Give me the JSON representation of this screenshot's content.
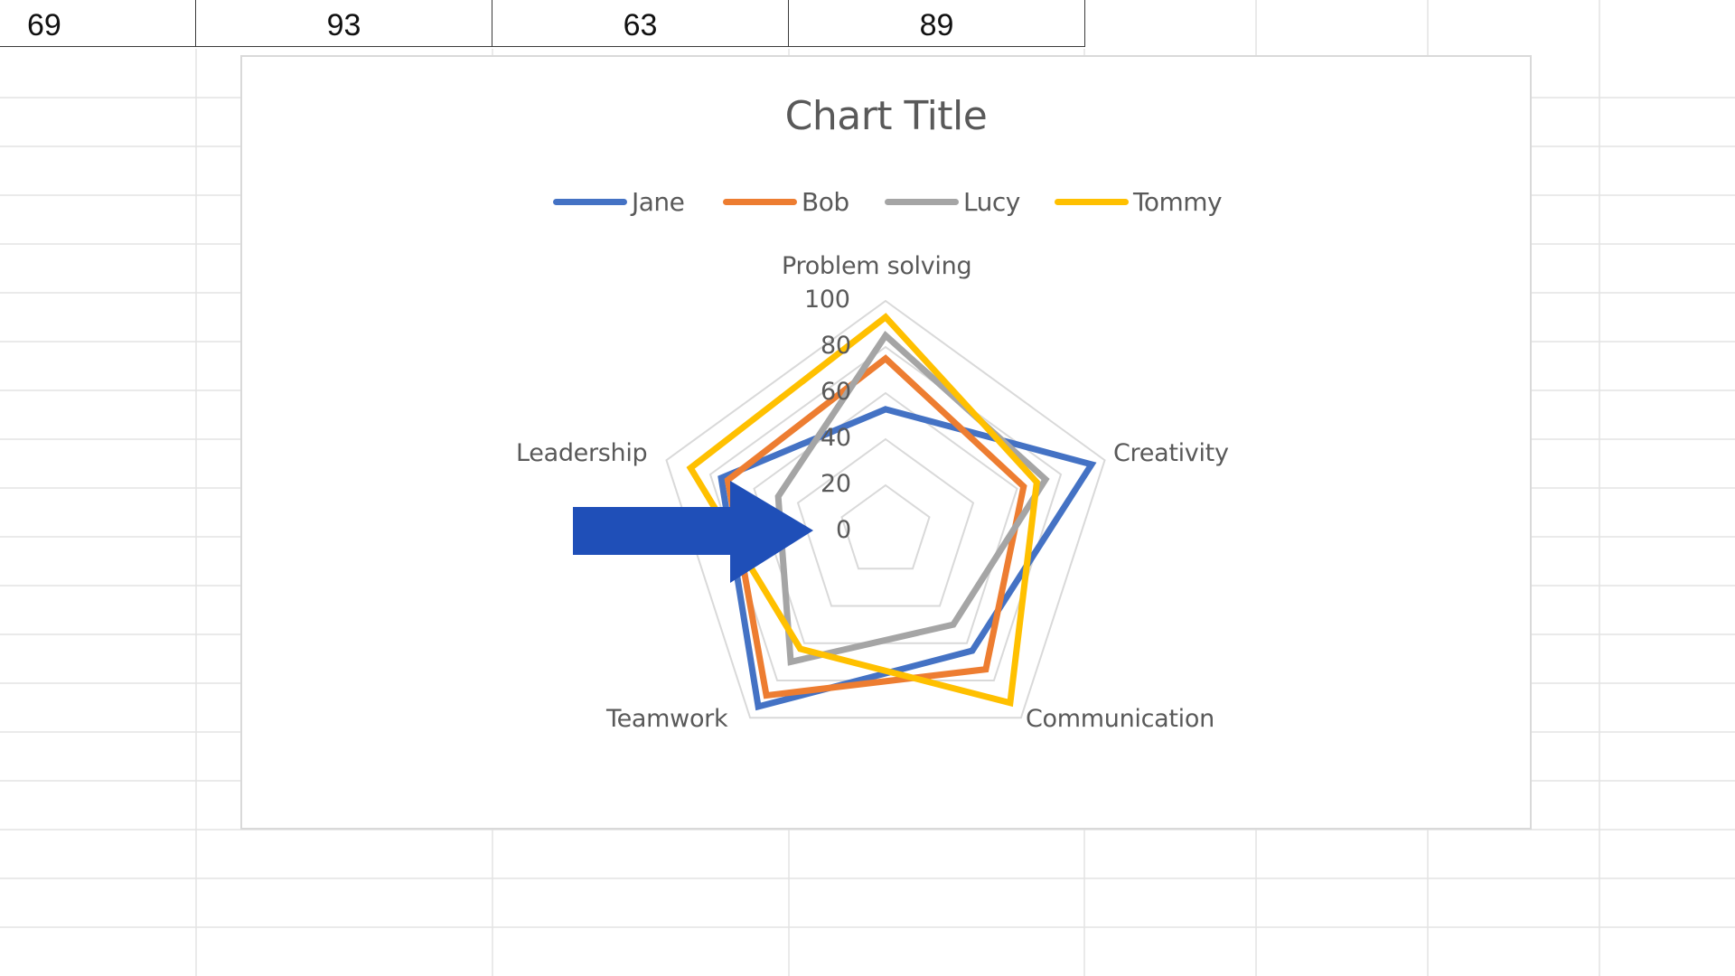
{
  "spreadsheet": {
    "visible_row": {
      "cells": [
        "69",
        "93",
        "63",
        "89"
      ]
    }
  },
  "chart_data": {
    "type": "radar",
    "title": "Chart Title",
    "categories": [
      "Problem solving",
      "Creativity",
      "Communication",
      "Teamwork",
      "Leadership"
    ],
    "series": [
      {
        "name": "Jane",
        "color": "#4472C4",
        "values": [
          53,
          94,
          64,
          94,
          75
        ]
      },
      {
        "name": "Bob",
        "color": "#ED7D31",
        "values": [
          75,
          63,
          74,
          88,
          72
        ]
      },
      {
        "name": "Lucy",
        "color": "#A5A5A5",
        "values": [
          85,
          73,
          50,
          70,
          49
        ]
      },
      {
        "name": "Tommy",
        "color": "#FFC000",
        "values": [
          93,
          69,
          92,
          63,
          89
        ]
      }
    ],
    "radial_axis": {
      "min": 0,
      "max": 100,
      "ticks": [
        "0",
        "20",
        "40",
        "60",
        "80",
        "100"
      ]
    },
    "grid": true,
    "legend_position": "top"
  },
  "annotation": {
    "arrow": {
      "color": "#1F4FB8",
      "direction": "right",
      "points_to": "0"
    }
  }
}
